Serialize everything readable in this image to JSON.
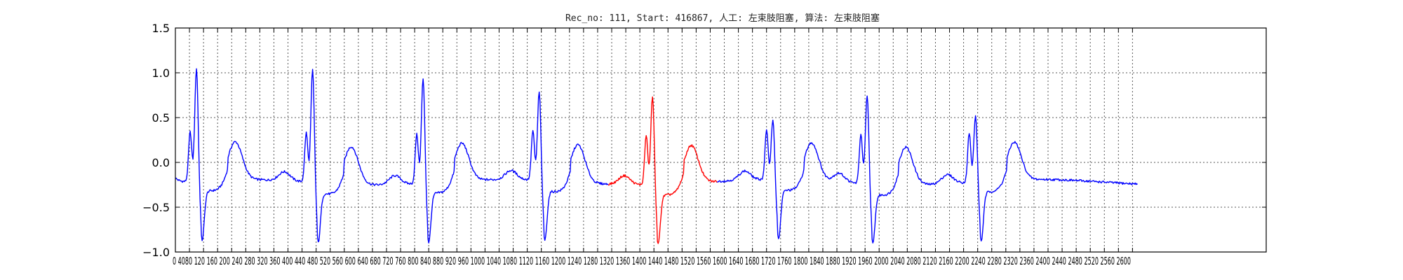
{
  "chart_data": {
    "type": "line",
    "title": "Rec_no: 111, Start: 416867, 人工: 左束肢阻塞, 算法: 左束肢阻塞",
    "xlabel": "",
    "ylabel": "",
    "xlim": [
      0,
      1550
    ],
    "ylim": [
      -1.0,
      1.5
    ],
    "yticks": [
      -1.0,
      -0.5,
      0.0,
      0.5,
      1.0,
      1.5
    ],
    "ytick_labels": [
      "−1.0",
      "−0.5",
      "0.0",
      "0.5",
      "1.0",
      "1.5"
    ],
    "xticks": [
      0,
      20,
      40,
      60,
      80,
      100,
      120,
      140,
      160,
      180,
      200,
      220,
      240,
      260,
      280,
      300,
      320,
      340,
      360,
      380,
      400,
      420,
      440,
      460,
      480,
      500,
      520,
      540,
      560,
      580,
      600,
      620,
      640,
      660,
      680,
      700,
      720,
      740,
      760,
      780,
      800,
      820,
      840,
      860,
      880,
      900,
      920,
      940,
      960,
      980,
      1000,
      1020,
      1040,
      1060,
      1080,
      1100,
      1120,
      1140,
      1160,
      1180,
      1200,
      1220,
      1240,
      1260,
      1280,
      1300,
      1320,
      1340,
      1360
    ],
    "xtick_text": "0 4080 120 160 200 240 280 320 360 400 440 480 520 560 600 640 680 720 760 800 840 880 920 960 1000 1040 1080 1120 1160 1200 1240 1280 1320 1360 1400 1440 1480 1520 1560 1600 1640 1680 1720 1760 1800 1840 1880 1920 1960 2000 2040 2080 2120 2160 2200 2240 2280 2320 2360 2400 2440 2480 2520 2560 2600",
    "grid": true,
    "grid_style": "dotted",
    "beats_x": [
      30,
      195,
      352,
      517,
      678,
      849,
      983,
      1137
    ],
    "beat_amplitudes": [
      1.07,
      1.07,
      0.98,
      0.8,
      0.8,
      0.48,
      0.8,
      0.55
    ],
    "highlight_range": [
      615,
      770
    ],
    "series": [
      {
        "color": "#0000ff",
        "range": [
          0,
          615
        ]
      },
      {
        "color": "#ff0000",
        "range": [
          615,
          770
        ]
      },
      {
        "color": "#0000ff",
        "range": [
          770,
          1367
        ]
      }
    ]
  }
}
